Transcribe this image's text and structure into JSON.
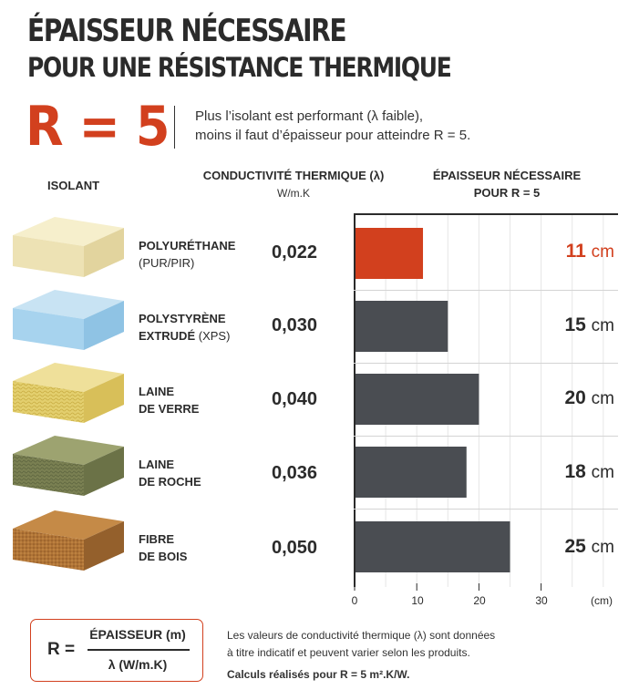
{
  "title_line1": "ÉPAISSEUR NÉCESSAIRE",
  "title_line2": "POUR UNE RÉSISTANCE THERMIQUE",
  "r_value": "R = 5",
  "intro_line1": "Plus l’isolant est performant (λ faible),",
  "intro_line2": "moins il faut d’épaisseur pour atteindre R = 5.",
  "headers": {
    "isolant": "ISOLANT",
    "conductivity": "CONDUCTIVITÉ THERMIQUE (λ)",
    "conductivity_unit": "W/m.K",
    "thickness_line1": "ÉPAISSEUR NÉCESSAIRE",
    "thickness_line2": "POUR R = 5"
  },
  "materials": [
    {
      "name_bold_1": "POLYURÉTHANE",
      "name_bold_2": "",
      "name_normal_2": "(PUR/PIR)",
      "lambda": "0,022",
      "value": "11",
      "unit": "cm",
      "color": "#d2401e",
      "highlight": true
    },
    {
      "name_bold_1": "POLYSTYRÈNE",
      "name_bold_2": "EXTRUDÉ",
      "name_normal_2": "(XPS)",
      "lambda": "0,030",
      "value": "15",
      "unit": "cm",
      "color": "#4a4d52",
      "highlight": false
    },
    {
      "name_bold_1": "LAINE",
      "name_bold_2": "DE VERRE",
      "name_normal_2": "",
      "lambda": "0,040",
      "value": "20",
      "unit": "cm",
      "color": "#4a4d52",
      "highlight": false
    },
    {
      "name_bold_1": "LAINE",
      "name_bold_2": "DE ROCHE",
      "name_normal_2": "",
      "lambda": "0,036",
      "value": "18",
      "unit": "cm",
      "color": "#4a4d52",
      "highlight": false
    },
    {
      "name_bold_1": "FIBRE",
      "name_bold_2": "DE BOIS",
      "name_normal_2": "",
      "lambda": "0,050",
      "value": "25",
      "unit": "cm",
      "color": "#4a4d52",
      "highlight": false
    }
  ],
  "chart_data": {
    "type": "bar",
    "orientation": "horizontal",
    "categories": [
      "POLYURÉTHANE (PUR/PIR)",
      "POLYSTYRÈNE EXTRUDÉ (XPS)",
      "LAINE DE VERRE",
      "LAINE DE ROCHE",
      "FIBRE DE BOIS"
    ],
    "values": [
      11,
      15,
      20,
      18,
      25
    ],
    "xlim": [
      0,
      40
    ],
    "xticks": [
      "0",
      "10",
      "20",
      "30"
    ],
    "xlabel": "(cm)",
    "bar_colors": [
      "#d2401e",
      "#4a4d52",
      "#4a4d52",
      "#4a4d52",
      "#4a4d52"
    ],
    "grid": "vertical-minor"
  },
  "formula": {
    "lhs": "R =",
    "numerator": "ÉPAISSEUR (m)",
    "denominator": "λ (W/m.K)"
  },
  "notes": {
    "line1": "Les valeurs de conductivité thermique (λ) sont données",
    "line2": "à titre indicatif et peuvent varier selon les produits.",
    "line3": "Calculs réalisés pour R = 5 m².K/W."
  }
}
